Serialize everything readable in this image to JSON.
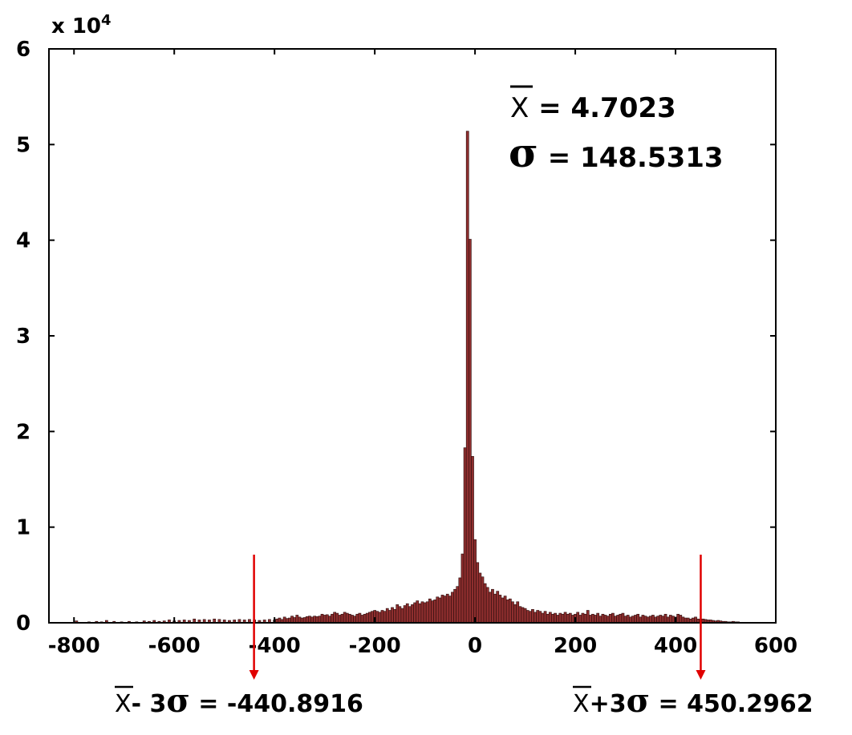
{
  "chart_data": {
    "type": "bar",
    "xlim": [
      -850,
      600
    ],
    "ylim": [
      0,
      60000
    ],
    "xticks": [
      "-800",
      "-600",
      "-400",
      "-200",
      "0",
      "200",
      "400",
      "600"
    ],
    "yticks": [
      "0",
      "1",
      "2",
      "3",
      "4",
      "5",
      "6"
    ],
    "y_multiplier_label": "x 10",
    "y_multiplier_exp": "4",
    "grid": false,
    "bin_width": 5,
    "bins": [
      [
        -795,
        200
      ],
      [
        -770,
        100
      ],
      [
        -755,
        150
      ],
      [
        -745,
        100
      ],
      [
        -735,
        250
      ],
      [
        -720,
        150
      ],
      [
        -705,
        100
      ],
      [
        -690,
        150
      ],
      [
        -675,
        100
      ],
      [
        -660,
        200
      ],
      [
        -650,
        150
      ],
      [
        -640,
        250
      ],
      [
        -630,
        150
      ],
      [
        -620,
        200
      ],
      [
        -610,
        300
      ],
      [
        -600,
        200
      ],
      [
        -590,
        250
      ],
      [
        -580,
        300
      ],
      [
        -570,
        250
      ],
      [
        -560,
        400
      ],
      [
        -550,
        300
      ],
      [
        -540,
        350
      ],
      [
        -530,
        300
      ],
      [
        -520,
        400
      ],
      [
        -510,
        350
      ],
      [
        -500,
        300
      ],
      [
        -490,
        250
      ],
      [
        -480,
        300
      ],
      [
        -470,
        350
      ],
      [
        -460,
        300
      ],
      [
        -450,
        350
      ],
      [
        -440,
        300
      ],
      [
        -430,
        250
      ],
      [
        -420,
        300
      ],
      [
        -410,
        350
      ],
      [
        -400,
        300
      ],
      [
        -395,
        400
      ],
      [
        -390,
        500
      ],
      [
        -385,
        350
      ],
      [
        -380,
        600
      ],
      [
        -375,
        450
      ],
      [
        -370,
        500
      ],
      [
        -365,
        700
      ],
      [
        -360,
        550
      ],
      [
        -355,
        800
      ],
      [
        -350,
        600
      ],
      [
        -345,
        500
      ],
      [
        -340,
        550
      ],
      [
        -335,
        650
      ],
      [
        -330,
        700
      ],
      [
        -325,
        600
      ],
      [
        -320,
        700
      ],
      [
        -315,
        650
      ],
      [
        -310,
        700
      ],
      [
        -305,
        900
      ],
      [
        -300,
        800
      ],
      [
        -295,
        850
      ],
      [
        -290,
        700
      ],
      [
        -285,
        900
      ],
      [
        -280,
        1100
      ],
      [
        -275,
        1000
      ],
      [
        -270,
        800
      ],
      [
        -265,
        900
      ],
      [
        -260,
        1100
      ],
      [
        -255,
        1000
      ],
      [
        -250,
        900
      ],
      [
        -245,
        800
      ],
      [
        -240,
        700
      ],
      [
        -235,
        900
      ],
      [
        -230,
        1000
      ],
      [
        -225,
        800
      ],
      [
        -220,
        900
      ],
      [
        -215,
        1000
      ],
      [
        -210,
        1100
      ],
      [
        -205,
        1200
      ],
      [
        -200,
        1300
      ],
      [
        -195,
        1200
      ],
      [
        -190,
        1100
      ],
      [
        -185,
        1300
      ],
      [
        -180,
        1200
      ],
      [
        -175,
        1500
      ],
      [
        -170,
        1300
      ],
      [
        -165,
        1600
      ],
      [
        -160,
        1400
      ],
      [
        -155,
        1900
      ],
      [
        -150,
        1700
      ],
      [
        -145,
        1500
      ],
      [
        -140,
        1800
      ],
      [
        -135,
        2000
      ],
      [
        -130,
        1700
      ],
      [
        -125,
        1900
      ],
      [
        -120,
        2100
      ],
      [
        -115,
        2300
      ],
      [
        -110,
        2000
      ],
      [
        -105,
        2200
      ],
      [
        -100,
        2100
      ],
      [
        -95,
        2200
      ],
      [
        -90,
        2500
      ],
      [
        -85,
        2300
      ],
      [
        -80,
        2400
      ],
      [
        -75,
        2700
      ],
      [
        -70,
        2600
      ],
      [
        -65,
        2900
      ],
      [
        -60,
        2800
      ],
      [
        -55,
        3000
      ],
      [
        -50,
        2800
      ],
      [
        -45,
        3200
      ],
      [
        -40,
        3500
      ],
      [
        -35,
        3800
      ],
      [
        -30,
        4700
      ],
      [
        -25,
        7200
      ],
      [
        -20,
        18300
      ],
      [
        -15,
        51400
      ],
      [
        -10,
        40100
      ],
      [
        -5,
        17400
      ],
      [
        0,
        8700
      ],
      [
        5,
        6300
      ],
      [
        10,
        5200
      ],
      [
        15,
        4800
      ],
      [
        20,
        4100
      ],
      [
        25,
        3700
      ],
      [
        30,
        3200
      ],
      [
        35,
        3500
      ],
      [
        40,
        3000
      ],
      [
        45,
        3300
      ],
      [
        50,
        2900
      ],
      [
        55,
        2600
      ],
      [
        60,
        2800
      ],
      [
        65,
        2400
      ],
      [
        70,
        2500
      ],
      [
        75,
        2200
      ],
      [
        80,
        1900
      ],
      [
        85,
        2200
      ],
      [
        90,
        1700
      ],
      [
        95,
        1600
      ],
      [
        100,
        1500
      ],
      [
        105,
        1300
      ],
      [
        110,
        1200
      ],
      [
        115,
        1400
      ],
      [
        120,
        1100
      ],
      [
        125,
        1300
      ],
      [
        130,
        1200
      ],
      [
        135,
        1000
      ],
      [
        140,
        1200
      ],
      [
        145,
        900
      ],
      [
        150,
        1100
      ],
      [
        155,
        900
      ],
      [
        160,
        1000
      ],
      [
        165,
        800
      ],
      [
        170,
        1000
      ],
      [
        175,
        900
      ],
      [
        180,
        1100
      ],
      [
        185,
        900
      ],
      [
        190,
        1000
      ],
      [
        195,
        800
      ],
      [
        200,
        900
      ],
      [
        205,
        1100
      ],
      [
        210,
        800
      ],
      [
        215,
        1000
      ],
      [
        220,
        900
      ],
      [
        225,
        1300
      ],
      [
        230,
        800
      ],
      [
        235,
        900
      ],
      [
        240,
        800
      ],
      [
        245,
        1000
      ],
      [
        250,
        700
      ],
      [
        255,
        900
      ],
      [
        260,
        800
      ],
      [
        265,
        700
      ],
      [
        270,
        900
      ],
      [
        275,
        1000
      ],
      [
        280,
        700
      ],
      [
        285,
        800
      ],
      [
        290,
        900
      ],
      [
        295,
        1000
      ],
      [
        300,
        700
      ],
      [
        305,
        800
      ],
      [
        310,
        600
      ],
      [
        315,
        700
      ],
      [
        320,
        800
      ],
      [
        325,
        900
      ],
      [
        330,
        600
      ],
      [
        335,
        800
      ],
      [
        340,
        700
      ],
      [
        345,
        600
      ],
      [
        350,
        700
      ],
      [
        355,
        800
      ],
      [
        360,
        600
      ],
      [
        365,
        700
      ],
      [
        370,
        800
      ],
      [
        375,
        700
      ],
      [
        380,
        900
      ],
      [
        385,
        600
      ],
      [
        390,
        800
      ],
      [
        395,
        700
      ],
      [
        400,
        600
      ],
      [
        405,
        900
      ],
      [
        410,
        800
      ],
      [
        415,
        600
      ],
      [
        420,
        500
      ],
      [
        425,
        500
      ],
      [
        430,
        400
      ],
      [
        435,
        500
      ],
      [
        440,
        600
      ],
      [
        445,
        400
      ],
      [
        450,
        350
      ],
      [
        455,
        400
      ],
      [
        460,
        350
      ],
      [
        465,
        300
      ],
      [
        470,
        300
      ],
      [
        475,
        250
      ],
      [
        480,
        200
      ],
      [
        485,
        250
      ],
      [
        490,
        200
      ],
      [
        495,
        150
      ],
      [
        500,
        150
      ],
      [
        505,
        100
      ],
      [
        510,
        100
      ],
      [
        515,
        150
      ],
      [
        520,
        100
      ],
      [
        525,
        100
      ]
    ]
  },
  "stats": {
    "xbar_symbol": "X",
    "mean_text": " = 4.7023",
    "sigma_symbol": "σ",
    "sigma_text": " = 148.5313"
  },
  "annotations": {
    "arrow_color": "#e00000",
    "left_bound_value": -440.8916,
    "right_bound_value": 450.2962,
    "left_xbar": "X",
    "left_mid": "- 3",
    "left_sigma": "σ",
    "left_value_text": " = -440.8916",
    "right_xbar": "X",
    "right_mid": "+3",
    "right_sigma": "σ",
    "right_value_text": " = 450.2962"
  }
}
